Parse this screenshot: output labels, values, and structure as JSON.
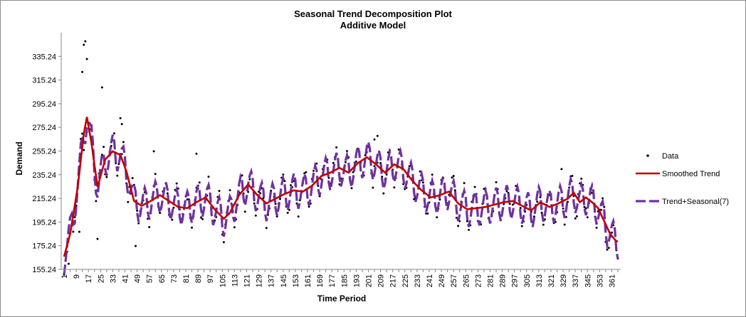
{
  "chart_data": {
    "type": "line",
    "title": "Seasonal Trend Decomposition Plot",
    "subtitle": "Additive Model",
    "xlabel": "Time Period",
    "ylabel": "Demand",
    "ylim": [
      155.24,
      355.24
    ],
    "xlim": [
      1,
      365
    ],
    "y_ticks": [
      "155.24",
      "175.24",
      "195.24",
      "215.24",
      "235.24",
      "255.24",
      "275.24",
      "295.24",
      "315.24",
      "335.24"
    ],
    "x_ticks": [
      "1",
      "9",
      "17",
      "25",
      "33",
      "41",
      "49",
      "57",
      "65",
      "73",
      "81",
      "89",
      "97",
      "105",
      "113",
      "121",
      "129",
      "137",
      "145",
      "153",
      "161",
      "169",
      "177",
      "185",
      "193",
      "201",
      "209",
      "217",
      "225",
      "233",
      "241",
      "249",
      "257",
      "265",
      "273",
      "281",
      "289",
      "297",
      "305",
      "313",
      "321",
      "329",
      "337",
      "345",
      "353",
      "361"
    ],
    "season_length": 7,
    "legend_position": "right",
    "grid": false,
    "series": [
      {
        "name": "Data",
        "style": "markers",
        "color": "#000000"
      },
      {
        "name": "Smoothed Trend",
        "style": "solid",
        "color": "#c00000"
      },
      {
        "name": "Trend+Seasonal(7)",
        "style": "dashed",
        "color": "#7030a0"
      }
    ],
    "trend_knots": {
      "x": [
        1,
        5,
        10,
        14,
        16,
        19,
        23,
        28,
        33,
        38,
        42,
        47,
        52,
        58,
        64,
        70,
        76,
        82,
        88,
        94,
        100,
        106,
        110,
        116,
        122,
        128,
        134,
        140,
        146,
        152,
        158,
        164,
        170,
        176,
        182,
        188,
        194,
        200,
        206,
        212,
        218,
        224,
        230,
        236,
        242,
        248,
        254,
        260,
        266,
        272,
        278,
        284,
        290,
        296,
        302,
        308,
        314,
        320,
        326,
        332,
        336,
        340,
        344,
        348,
        352,
        356,
        360,
        364
      ],
      "y": [
        166,
        185,
        225,
        270,
        284,
        262,
        225,
        248,
        255,
        252,
        238,
        213,
        209,
        213,
        218,
        213,
        208,
        207,
        212,
        216,
        206,
        198,
        203,
        218,
        227,
        218,
        211,
        215,
        219,
        222,
        221,
        226,
        234,
        237,
        241,
        237,
        245,
        250,
        244,
        237,
        244,
        240,
        230,
        222,
        216,
        218,
        221,
        211,
        206,
        207,
        208,
        210,
        212,
        213,
        209,
        205,
        212,
        208,
        211,
        215,
        220,
        212,
        216,
        212,
        207,
        196,
        185,
        179
      ]
    },
    "seasonal_offsets": [
      -15,
      -9,
      0,
      9,
      14,
      9,
      -8
    ],
    "outlier_points": [
      {
        "x": 13,
        "y": 322
      },
      {
        "x": 14,
        "y": 345
      },
      {
        "x": 15,
        "y": 348
      },
      {
        "x": 16,
        "y": 333
      },
      {
        "x": 26,
        "y": 309
      },
      {
        "x": 39,
        "y": 278
      },
      {
        "x": 38,
        "y": 283
      },
      {
        "x": 60,
        "y": 255
      },
      {
        "x": 88,
        "y": 253
      },
      {
        "x": 207,
        "y": 268
      },
      {
        "x": 205,
        "y": 265
      },
      {
        "x": 328,
        "y": 240
      },
      {
        "x": 23,
        "y": 181
      },
      {
        "x": 48,
        "y": 175
      },
      {
        "x": 4,
        "y": 160
      },
      {
        "x": 11,
        "y": 187
      }
    ]
  }
}
